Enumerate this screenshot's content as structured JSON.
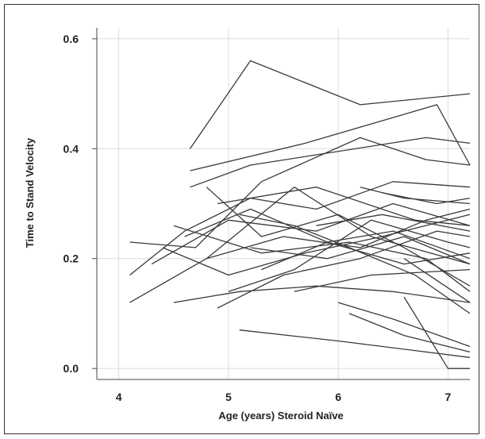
{
  "chart_data": {
    "type": "line",
    "title": "",
    "xlabel": "Age (years) Steroid Naïve",
    "ylabel": "Time to Stand Velocity",
    "xlim": [
      3.8,
      7.2
    ],
    "ylim": [
      -0.02,
      0.62
    ],
    "x_ticks": [
      "4",
      "5",
      "6",
      "7"
    ],
    "y_ticks": [
      "0.0",
      "0.2",
      "0.4",
      "0.6"
    ],
    "grid": true,
    "legend": "none",
    "colors": {
      "line": "#3a3a3a",
      "grid": "#dcdcdc",
      "axis": "#444444",
      "text": "#222222"
    },
    "series": [
      {
        "x": [
          4.65,
          5.2,
          6.2,
          7.2
        ],
        "y": [
          0.4,
          0.56,
          0.48,
          0.5
        ]
      },
      {
        "x": [
          4.65,
          5.2,
          6.8,
          7.2
        ],
        "y": [
          0.33,
          0.37,
          0.42,
          0.41
        ]
      },
      {
        "x": [
          4.65,
          5.7,
          6.9,
          7.2
        ],
        "y": [
          0.36,
          0.41,
          0.48,
          0.37
        ]
      },
      {
        "x": [
          4.1,
          4.7,
          5.3,
          6.2,
          6.8,
          7.2
        ],
        "y": [
          0.23,
          0.22,
          0.34,
          0.42,
          0.38,
          0.37
        ]
      },
      {
        "x": [
          4.1,
          4.6,
          5.2,
          5.8,
          6.5,
          7.2
        ],
        "y": [
          0.17,
          0.25,
          0.31,
          0.29,
          0.34,
          0.33
        ]
      },
      {
        "x": [
          4.1,
          4.8,
          5.6,
          6.3,
          7.2
        ],
        "y": [
          0.12,
          0.2,
          0.33,
          0.24,
          0.19
        ]
      },
      {
        "x": [
          4.5,
          5.3,
          6.1,
          6.8,
          7.2
        ],
        "y": [
          0.26,
          0.21,
          0.23,
          0.2,
          0.14
        ]
      },
      {
        "x": [
          4.8,
          5.3,
          6.0,
          6.6,
          7.2
        ],
        "y": [
          0.33,
          0.24,
          0.28,
          0.22,
          0.15
        ]
      },
      {
        "x": [
          4.3,
          5.0,
          5.8,
          6.5,
          7.2
        ],
        "y": [
          0.19,
          0.27,
          0.25,
          0.3,
          0.26
        ]
      },
      {
        "x": [
          4.4,
          5.0,
          5.7,
          6.4,
          7.2
        ],
        "y": [
          0.22,
          0.17,
          0.21,
          0.24,
          0.28
        ]
      },
      {
        "x": [
          4.6,
          5.2,
          5.9,
          6.6,
          7.2
        ],
        "y": [
          0.24,
          0.29,
          0.23,
          0.19,
          0.21
        ]
      },
      {
        "x": [
          4.9,
          5.5,
          6.2,
          6.9,
          7.2
        ],
        "y": [
          0.11,
          0.17,
          0.2,
          0.25,
          0.24
        ]
      },
      {
        "x": [
          5.0,
          5.6,
          6.3,
          7.0,
          7.2
        ],
        "y": [
          0.14,
          0.18,
          0.27,
          0.23,
          0.22
        ]
      },
      {
        "x": [
          4.8,
          5.5,
          6.2,
          6.8,
          7.2
        ],
        "y": [
          0.2,
          0.24,
          0.22,
          0.27,
          0.29
        ]
      },
      {
        "x": [
          4.5,
          5.1,
          5.8,
          6.5,
          7.2
        ],
        "y": [
          0.12,
          0.14,
          0.15,
          0.14,
          0.12
        ]
      },
      {
        "x": [
          5.1,
          5.6,
          6.1,
          6.7,
          7.2
        ],
        "y": [
          0.28,
          0.26,
          0.22,
          0.17,
          0.1
        ]
      },
      {
        "x": [
          5.2,
          5.9,
          6.6,
          7.2
        ],
        "y": [
          0.22,
          0.2,
          0.24,
          0.19
        ]
      },
      {
        "x": [
          5.3,
          5.9,
          6.5,
          7.2
        ],
        "y": [
          0.18,
          0.23,
          0.25,
          0.2
        ]
      },
      {
        "x": [
          5.1,
          6.0,
          7.2
        ],
        "y": [
          0.07,
          0.05,
          0.02
        ]
      },
      {
        "x": [
          6.0,
          6.5,
          7.2
        ],
        "y": [
          0.12,
          0.09,
          0.04
        ]
      },
      {
        "x": [
          6.1,
          6.6,
          7.2
        ],
        "y": [
          0.1,
          0.06,
          0.03
        ]
      },
      {
        "x": [
          6.6,
          7.0,
          7.2
        ],
        "y": [
          0.13,
          0.0,
          0.0
        ]
      },
      {
        "x": [
          6.6,
          7.2
        ],
        "y": [
          0.2,
          0.12
        ]
      },
      {
        "x": [
          6.4,
          6.9,
          7.2
        ],
        "y": [
          0.32,
          0.3,
          0.31
        ]
      },
      {
        "x": [
          5.8,
          6.4,
          7.2
        ],
        "y": [
          0.26,
          0.28,
          0.25
        ]
      },
      {
        "x": [
          4.9,
          5.8,
          6.7,
          7.2
        ],
        "y": [
          0.3,
          0.33,
          0.27,
          0.26
        ]
      },
      {
        "x": [
          6.2,
          6.6,
          7.2
        ],
        "y": [
          0.33,
          0.31,
          0.3
        ]
      },
      {
        "x": [
          5.6,
          6.3,
          7.2
        ],
        "y": [
          0.14,
          0.17,
          0.18
        ]
      }
    ]
  }
}
